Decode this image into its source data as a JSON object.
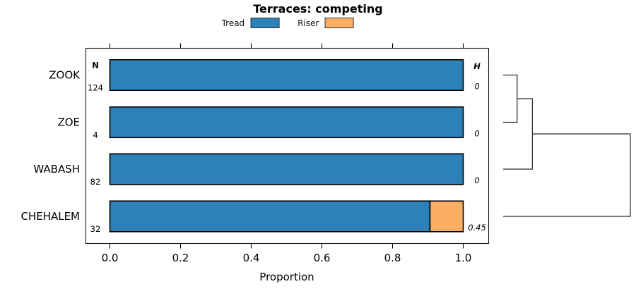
{
  "chart_data": {
    "type": "bar",
    "orientation": "horizontal",
    "stacked": true,
    "title": "Terraces: competing",
    "xlabel": "Proportion",
    "xlim": [
      0,
      1
    ],
    "grid": false,
    "legend_position": "top",
    "xticks": [
      {
        "value": 0.0,
        "label": "0.0"
      },
      {
        "value": 0.2,
        "label": "0.2"
      },
      {
        "value": 0.4,
        "label": "0.4"
      },
      {
        "value": 0.6,
        "label": "0.6"
      },
      {
        "value": 0.8,
        "label": "0.8"
      },
      {
        "value": 1.0,
        "label": "1.0"
      }
    ],
    "categories": [
      "ZOOK",
      "ZOE",
      "WABASH",
      "CHEHALEM"
    ],
    "series": [
      {
        "name": "Tread",
        "color": "#2E81B8",
        "values": [
          1.0,
          1.0,
          1.0,
          0.906
        ]
      },
      {
        "name": "Riser",
        "color": "#FBAE64",
        "values": [
          0.0,
          0.0,
          0.0,
          0.094
        ]
      }
    ],
    "count_column": {
      "header": "N",
      "values": [
        "124",
        "4",
        "82",
        "32"
      ]
    },
    "entropy_column": {
      "header": "H",
      "values": [
        "0",
        "0",
        "0",
        "0.45"
      ]
    },
    "dendrogram": {
      "leaf_order": [
        "ZOOK",
        "ZOE",
        "WABASH",
        "CHEHALEM"
      ],
      "merges": [
        {
          "a": "L0",
          "b": "L1",
          "height": 0.11
        },
        {
          "a": "M0",
          "b": "L2",
          "height": 0.23
        },
        {
          "a": "M1",
          "b": "L3",
          "height": 1.0
        }
      ]
    },
    "colors": {
      "bar_border": "#000000",
      "box_border": "#1a1a1a",
      "dendro_line": "#2b2b2b"
    }
  }
}
